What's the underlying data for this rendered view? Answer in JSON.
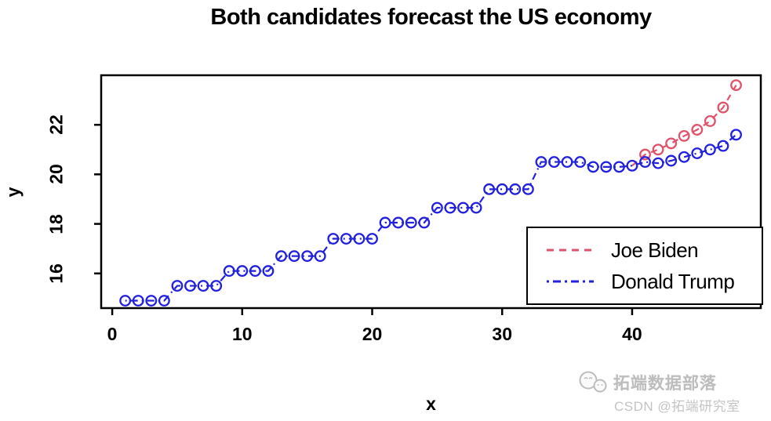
{
  "title": "Both candidates forecast the US economy",
  "colors": {
    "biden_red": "#DF536B",
    "trump_blue": "#2222DD",
    "axis_black": "#000000",
    "background": "#FFFFFF",
    "watermark_gray": "#BDBDBD"
  },
  "chart_data": {
    "type": "line",
    "title": "Both candidates forecast the US economy",
    "xlabel": "x",
    "ylabel": "y",
    "xlim": [
      -0.85,
      49.9
    ],
    "ylim": [
      14.6,
      24.0
    ],
    "xticks": [
      0,
      10,
      20,
      30,
      40
    ],
    "yticks": [
      16,
      18,
      20,
      22
    ],
    "grid": false,
    "marker": "open-circle",
    "legend": {
      "position": "bottom-right",
      "entries": [
        {
          "label": "Joe Biden",
          "color": "#DF536B",
          "dash": "dashed"
        },
        {
          "label": "Donald Trump",
          "color": "#2222DD",
          "dash": "dotdash"
        }
      ]
    },
    "series": [
      {
        "name": "Joe Biden",
        "color": "#DF536B",
        "dash": "dashed",
        "x_start": 40,
        "marker_from": 41,
        "y": [
          20.35,
          20.8,
          21.0,
          21.25,
          21.55,
          21.8,
          22.15,
          22.7,
          23.6
        ]
      },
      {
        "name": "Donald Trump",
        "color": "#2222DD",
        "dash": "dotdash",
        "x_start": 1,
        "marker_from": 1,
        "y": [
          14.9,
          14.9,
          14.9,
          14.9,
          15.5,
          15.5,
          15.5,
          15.5,
          16.1,
          16.1,
          16.1,
          16.1,
          16.7,
          16.7,
          16.7,
          16.7,
          17.4,
          17.4,
          17.4,
          17.4,
          18.05,
          18.05,
          18.05,
          18.05,
          18.65,
          18.65,
          18.65,
          18.65,
          19.4,
          19.4,
          19.4,
          19.4,
          20.5,
          20.5,
          20.5,
          20.5,
          20.3,
          20.3,
          20.3,
          20.35,
          20.5,
          20.45,
          20.55,
          20.7,
          20.85,
          21.0,
          21.15,
          21.6
        ]
      }
    ]
  },
  "watermark": {
    "icon": "wechat-icon",
    "brand": "拓端数据部落",
    "csdn": "CSDN @拓端研究室"
  }
}
